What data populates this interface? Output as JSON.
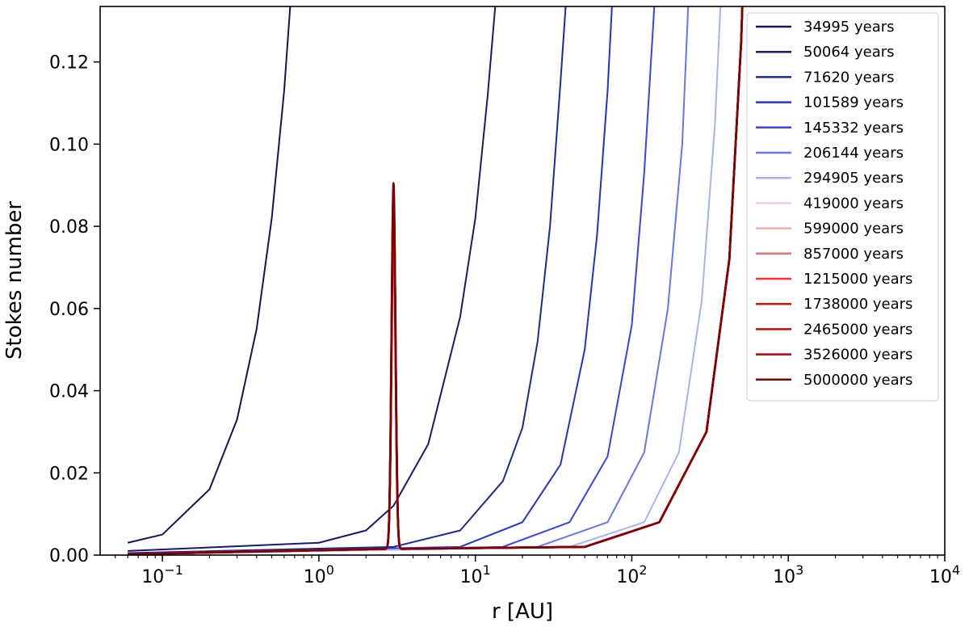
{
  "chart_data": {
    "type": "line",
    "title": "",
    "xlabel": "r [AU]",
    "ylabel": "Stokes number",
    "x_scale": "log",
    "xlim": [
      0.04,
      10000
    ],
    "ylim": [
      0,
      0.1335
    ],
    "x_major_ticks": [
      0.1,
      1,
      10,
      100,
      1000,
      10000
    ],
    "x_tick_labels": [
      {
        "base": "10",
        "exp": "−1"
      },
      {
        "base": "10",
        "exp": "0"
      },
      {
        "base": "10",
        "exp": "1"
      },
      {
        "base": "10",
        "exp": "2"
      },
      {
        "base": "10",
        "exp": "3"
      },
      {
        "base": "10",
        "exp": "4"
      }
    ],
    "y_ticks": [
      0,
      0.02,
      0.04,
      0.06,
      0.08,
      0.1,
      0.12
    ],
    "y_tick_labels": [
      "0.00",
      "0.02",
      "0.04",
      "0.06",
      "0.08",
      "0.10",
      "0.12"
    ],
    "grid": false,
    "legend_position": "upper right",
    "series": [
      {
        "name": "34995 years",
        "color": "#14145a",
        "points": [
          [
            0.06,
            0.003
          ],
          [
            0.1,
            0.005
          ],
          [
            0.2,
            0.016
          ],
          [
            0.3,
            0.033
          ],
          [
            0.4,
            0.055
          ],
          [
            0.5,
            0.082
          ],
          [
            0.6,
            0.113
          ],
          [
            0.66,
            0.135
          ]
        ]
      },
      {
        "name": "50064 years",
        "color": "#191970",
        "points": [
          [
            0.06,
            0.001
          ],
          [
            1,
            0.003
          ],
          [
            2,
            0.006
          ],
          [
            3,
            0.012
          ],
          [
            5,
            0.027
          ],
          [
            8,
            0.058
          ],
          [
            10,
            0.082
          ],
          [
            12,
            0.112
          ],
          [
            13.5,
            0.135
          ]
        ]
      },
      {
        "name": "71620 years",
        "color": "#1c2a96",
        "points": [
          [
            0.06,
            0.0005
          ],
          [
            3,
            0.002
          ],
          [
            8,
            0.006
          ],
          [
            15,
            0.018
          ],
          [
            20,
            0.031
          ],
          [
            25,
            0.052
          ],
          [
            30,
            0.08
          ],
          [
            35,
            0.115
          ],
          [
            38,
            0.135
          ]
        ]
      },
      {
        "name": "101589 years",
        "color": "#2233cc",
        "points": [
          [
            0.06,
            0.0003
          ],
          [
            8,
            0.002
          ],
          [
            20,
            0.008
          ],
          [
            35,
            0.022
          ],
          [
            50,
            0.05
          ],
          [
            60,
            0.078
          ],
          [
            70,
            0.113
          ],
          [
            75,
            0.135
          ]
        ]
      },
      {
        "name": "145332 years",
        "color": "#3344ee",
        "points": [
          [
            0.06,
            0.0002
          ],
          [
            15,
            0.002
          ],
          [
            40,
            0.008
          ],
          [
            70,
            0.024
          ],
          [
            100,
            0.056
          ],
          [
            120,
            0.093
          ],
          [
            140,
            0.135
          ]
        ]
      },
      {
        "name": "206144 years",
        "color": "#6a74ee",
        "points": [
          [
            0.06,
            0.0002
          ],
          [
            25,
            0.002
          ],
          [
            70,
            0.008
          ],
          [
            120,
            0.025
          ],
          [
            170,
            0.06
          ],
          [
            210,
            0.1
          ],
          [
            230,
            0.135
          ]
        ]
      },
      {
        "name": "294905 years",
        "color": "#abb1f5",
        "points": [
          [
            0.06,
            0.0002
          ],
          [
            40,
            0.002
          ],
          [
            120,
            0.008
          ],
          [
            200,
            0.025
          ],
          [
            280,
            0.062
          ],
          [
            340,
            0.105
          ],
          [
            370,
            0.135
          ]
        ]
      },
      {
        "name": "419000 years",
        "color": "#f6c6ef",
        "points": [
          [
            0.06,
            0.0002
          ],
          [
            50,
            0.002
          ],
          [
            150,
            0.008
          ],
          [
            300,
            0.03
          ],
          [
            420,
            0.072
          ],
          [
            500,
            0.125
          ],
          [
            510,
            0.135
          ]
        ]
      },
      {
        "name": "599000 years",
        "color": "#f6aaaa",
        "points": [
          [
            0.06,
            0.0002
          ],
          [
            50,
            0.002
          ],
          [
            150,
            0.008
          ],
          [
            300,
            0.03
          ],
          [
            420,
            0.072
          ],
          [
            500,
            0.125
          ],
          [
            510,
            0.135
          ]
        ]
      },
      {
        "name": "857000 years",
        "color": "#ef6e6e",
        "points": [
          [
            0.06,
            0.0002
          ],
          [
            50,
            0.002
          ],
          [
            150,
            0.008
          ],
          [
            300,
            0.03
          ],
          [
            420,
            0.072
          ],
          [
            500,
            0.125
          ],
          [
            510,
            0.135
          ]
        ]
      },
      {
        "name": "1215000 years",
        "color": "#f23030",
        "points": [
          [
            0.06,
            0.0002
          ],
          [
            50,
            0.002
          ],
          [
            150,
            0.008
          ],
          [
            300,
            0.03
          ],
          [
            420,
            0.072
          ],
          [
            500,
            0.125
          ],
          [
            510,
            0.135
          ]
        ]
      },
      {
        "name": "1738000 years",
        "color": "#e01010",
        "points": [
          [
            0.06,
            0.0002
          ],
          [
            50,
            0.002
          ],
          [
            150,
            0.008
          ],
          [
            300,
            0.03
          ],
          [
            420,
            0.072
          ],
          [
            500,
            0.125
          ],
          [
            510,
            0.135
          ]
        ]
      },
      {
        "name": "2465000 years",
        "color": "#c80a0a",
        "points": [
          [
            0.06,
            0.0002
          ],
          [
            50,
            0.002
          ],
          [
            150,
            0.008
          ],
          [
            300,
            0.03
          ],
          [
            420,
            0.072
          ],
          [
            500,
            0.125
          ],
          [
            510,
            0.135
          ]
        ]
      },
      {
        "name": "3526000 years",
        "color": "#a80606",
        "points": [
          [
            0.06,
            0.0002
          ],
          [
            50,
            0.002
          ],
          [
            150,
            0.008
          ],
          [
            300,
            0.03
          ],
          [
            420,
            0.072
          ],
          [
            500,
            0.125
          ],
          [
            510,
            0.135
          ]
        ]
      },
      {
        "name": "5000000 years",
        "color": "#800000",
        "points": [
          [
            0.06,
            0.0002
          ],
          [
            50,
            0.002
          ],
          [
            150,
            0.008
          ],
          [
            300,
            0.03
          ],
          [
            420,
            0.072
          ],
          [
            500,
            0.125
          ],
          [
            510,
            0.135
          ]
        ]
      }
    ],
    "annotations": [
      {
        "type": "peak",
        "x_center": 3.0,
        "height": 0.089,
        "note": "narrow spike near r ≈ 3 AU on the red curves"
      }
    ]
  }
}
